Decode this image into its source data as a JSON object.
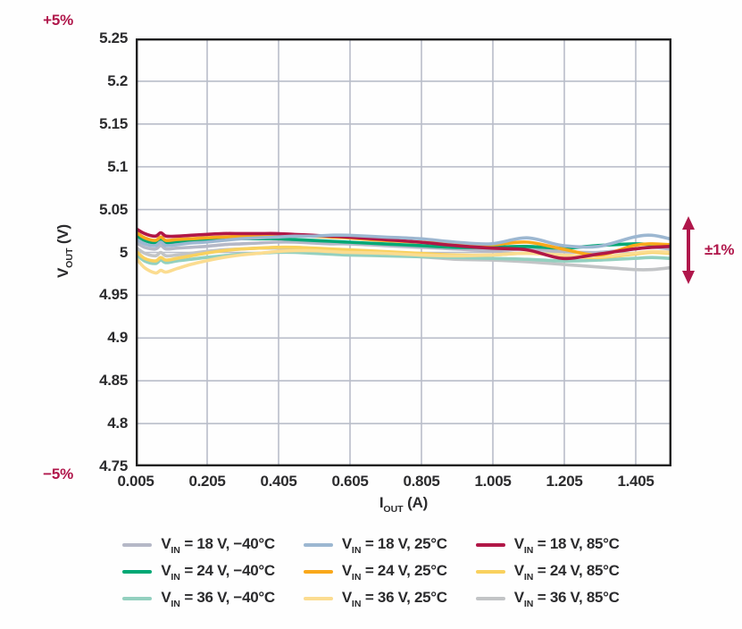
{
  "colors": {
    "accent": "#b0174b",
    "axis": "#1d1d1f",
    "grid": "#b9bdc9",
    "text": "#2b2b2d",
    "background": "#fefefe"
  },
  "annotations": {
    "top_left": "+5%",
    "bottom_left": "−5%",
    "right": "±1%"
  },
  "chart_data": {
    "type": "line",
    "title": "",
    "grid": true,
    "legend_position": "bottom",
    "legend": {
      "symbol": "V",
      "symbol_sub": "IN",
      "equals": "="
    },
    "xlabel": {
      "base": "I",
      "sub": "OUT",
      "unit": "(A)"
    },
    "ylabel": {
      "base": "V",
      "sub": "OUT",
      "unit": "(V)"
    },
    "xlim": [
      0.005,
      1.505
    ],
    "ylim": [
      4.75,
      5.25
    ],
    "xticks": {
      "values": [
        0.005,
        0.205,
        0.405,
        0.605,
        0.805,
        1.005,
        1.205,
        1.405
      ],
      "labels": [
        "0.005",
        "0.205",
        "0.405",
        "0.605",
        "0.805",
        "1.005",
        "1.205",
        "1.405"
      ]
    },
    "yticks": {
      "values": [
        5.25,
        5.2,
        5.15,
        5.1,
        5.05,
        5.0,
        4.95,
        4.9,
        4.85,
        4.8,
        4.75
      ],
      "labels": [
        "5.25",
        "5.2",
        "5.15",
        "5.1",
        "5.05",
        "5",
        "4.95",
        "4.9",
        "4.85",
        "4.8",
        "4.75"
      ]
    },
    "x": [
      0.005,
      0.03,
      0.06,
      0.075,
      0.09,
      0.12,
      0.16,
      0.2,
      0.25,
      0.3,
      0.35,
      0.4,
      0.45,
      0.5,
      0.55,
      0.6,
      0.7,
      0.8,
      0.9,
      1.0,
      1.1,
      1.2,
      1.3,
      1.4,
      1.45,
      1.5
    ],
    "series": [
      {
        "id": "vin18-n40",
        "label": "18 V, −40°C",
        "color": "#b5b8c7",
        "z": 1,
        "values": [
          5.012,
          5.006,
          5.004,
          5.008,
          5.004,
          5.005,
          5.006,
          5.007,
          5.009,
          5.01,
          5.011,
          5.012,
          5.012,
          5.011,
          5.01,
          5.01,
          5.008,
          5.006,
          5.004,
          5.002,
          5.004,
          5.001,
          5.0,
          5.004,
          5.006,
          5.004
        ]
      },
      {
        "id": "vin24-n40",
        "label": "24 V, −40°C",
        "color": "#00a874",
        "z": 5,
        "values": [
          5.02,
          5.014,
          5.011,
          5.015,
          5.011,
          5.012,
          5.013,
          5.014,
          5.015,
          5.016,
          5.016,
          5.016,
          5.015,
          5.014,
          5.013,
          5.012,
          5.01,
          5.008,
          5.006,
          5.006,
          5.007,
          5.005,
          5.008,
          5.01,
          5.009,
          5.007
        ]
      },
      {
        "id": "vin36-n40",
        "label": "36 V, −40°C",
        "color": "#93d0bf",
        "z": 2,
        "values": [
          4.998,
          4.99,
          4.987,
          4.991,
          4.988,
          4.99,
          4.992,
          4.994,
          4.996,
          4.998,
          4.999,
          5.0,
          5.0,
          4.999,
          4.998,
          4.997,
          4.996,
          4.995,
          4.994,
          4.993,
          4.992,
          4.99,
          4.991,
          4.993,
          4.994,
          4.993
        ]
      },
      {
        "id": "vin18-25",
        "label": "18 V, 25°C",
        "color": "#9cb7d1",
        "z": 8,
        "values": [
          5.016,
          5.01,
          5.008,
          5.012,
          5.008,
          5.009,
          5.011,
          5.012,
          5.014,
          5.016,
          5.017,
          5.018,
          5.019,
          5.019,
          5.02,
          5.02,
          5.018,
          5.016,
          5.012,
          5.01,
          5.017,
          5.008,
          5.007,
          5.018,
          5.02,
          5.016
        ]
      },
      {
        "id": "vin24-25",
        "label": "24 V, 25°C",
        "color": "#f9a81b",
        "z": 6,
        "values": [
          5.024,
          5.017,
          5.014,
          5.018,
          5.014,
          5.015,
          5.016,
          5.017,
          5.018,
          5.019,
          5.02,
          5.02,
          5.02,
          5.019,
          5.018,
          5.017,
          5.014,
          5.012,
          5.01,
          5.009,
          5.012,
          5.004,
          4.997,
          5.008,
          5.01,
          5.009
        ]
      },
      {
        "id": "vin36-25",
        "label": "36 V, 25°C",
        "color": "#fbdc90",
        "z": 4,
        "values": [
          4.994,
          4.982,
          4.976,
          4.979,
          4.977,
          4.981,
          4.986,
          4.99,
          4.994,
          4.997,
          4.999,
          5.001,
          5.002,
          5.002,
          5.001,
          5.0,
          4.999,
          4.997,
          4.996,
          4.997,
          4.999,
          4.997,
          4.995,
          4.999,
          5.001,
          5.0
        ]
      },
      {
        "id": "vin18-85",
        "label": "18 V, 85°C",
        "color": "#b11747",
        "z": 7,
        "values": [
          5.028,
          5.022,
          5.019,
          5.023,
          5.019,
          5.019,
          5.02,
          5.021,
          5.022,
          5.022,
          5.022,
          5.022,
          5.021,
          5.02,
          5.019,
          5.018,
          5.015,
          5.012,
          5.008,
          5.005,
          5.003,
          4.993,
          4.998,
          5.004,
          5.006,
          5.007
        ]
      },
      {
        "id": "vin24-85",
        "label": "24 V, 85°C",
        "color": "#f9d15e",
        "z": 3,
        "values": [
          5.002,
          4.993,
          4.99,
          4.994,
          4.991,
          4.993,
          4.996,
          4.999,
          5.002,
          5.004,
          5.005,
          5.006,
          5.006,
          5.005,
          5.004,
          5.003,
          5.001,
          4.999,
          4.997,
          4.997,
          4.999,
          4.996,
          4.994,
          4.998,
          5.0,
          4.999
        ]
      },
      {
        "id": "vin36-85",
        "label": "36 V, 85°C",
        "color": "#c2c4c6",
        "z": 0,
        "values": [
          5.006,
          4.999,
          4.996,
          5.0,
          4.996,
          4.997,
          4.999,
          5.001,
          5.003,
          5.004,
          5.005,
          5.005,
          5.005,
          5.004,
          5.003,
          5.001,
          4.998,
          4.995,
          4.992,
          4.991,
          4.989,
          4.986,
          4.983,
          4.98,
          4.98,
          4.982
        ]
      }
    ]
  }
}
